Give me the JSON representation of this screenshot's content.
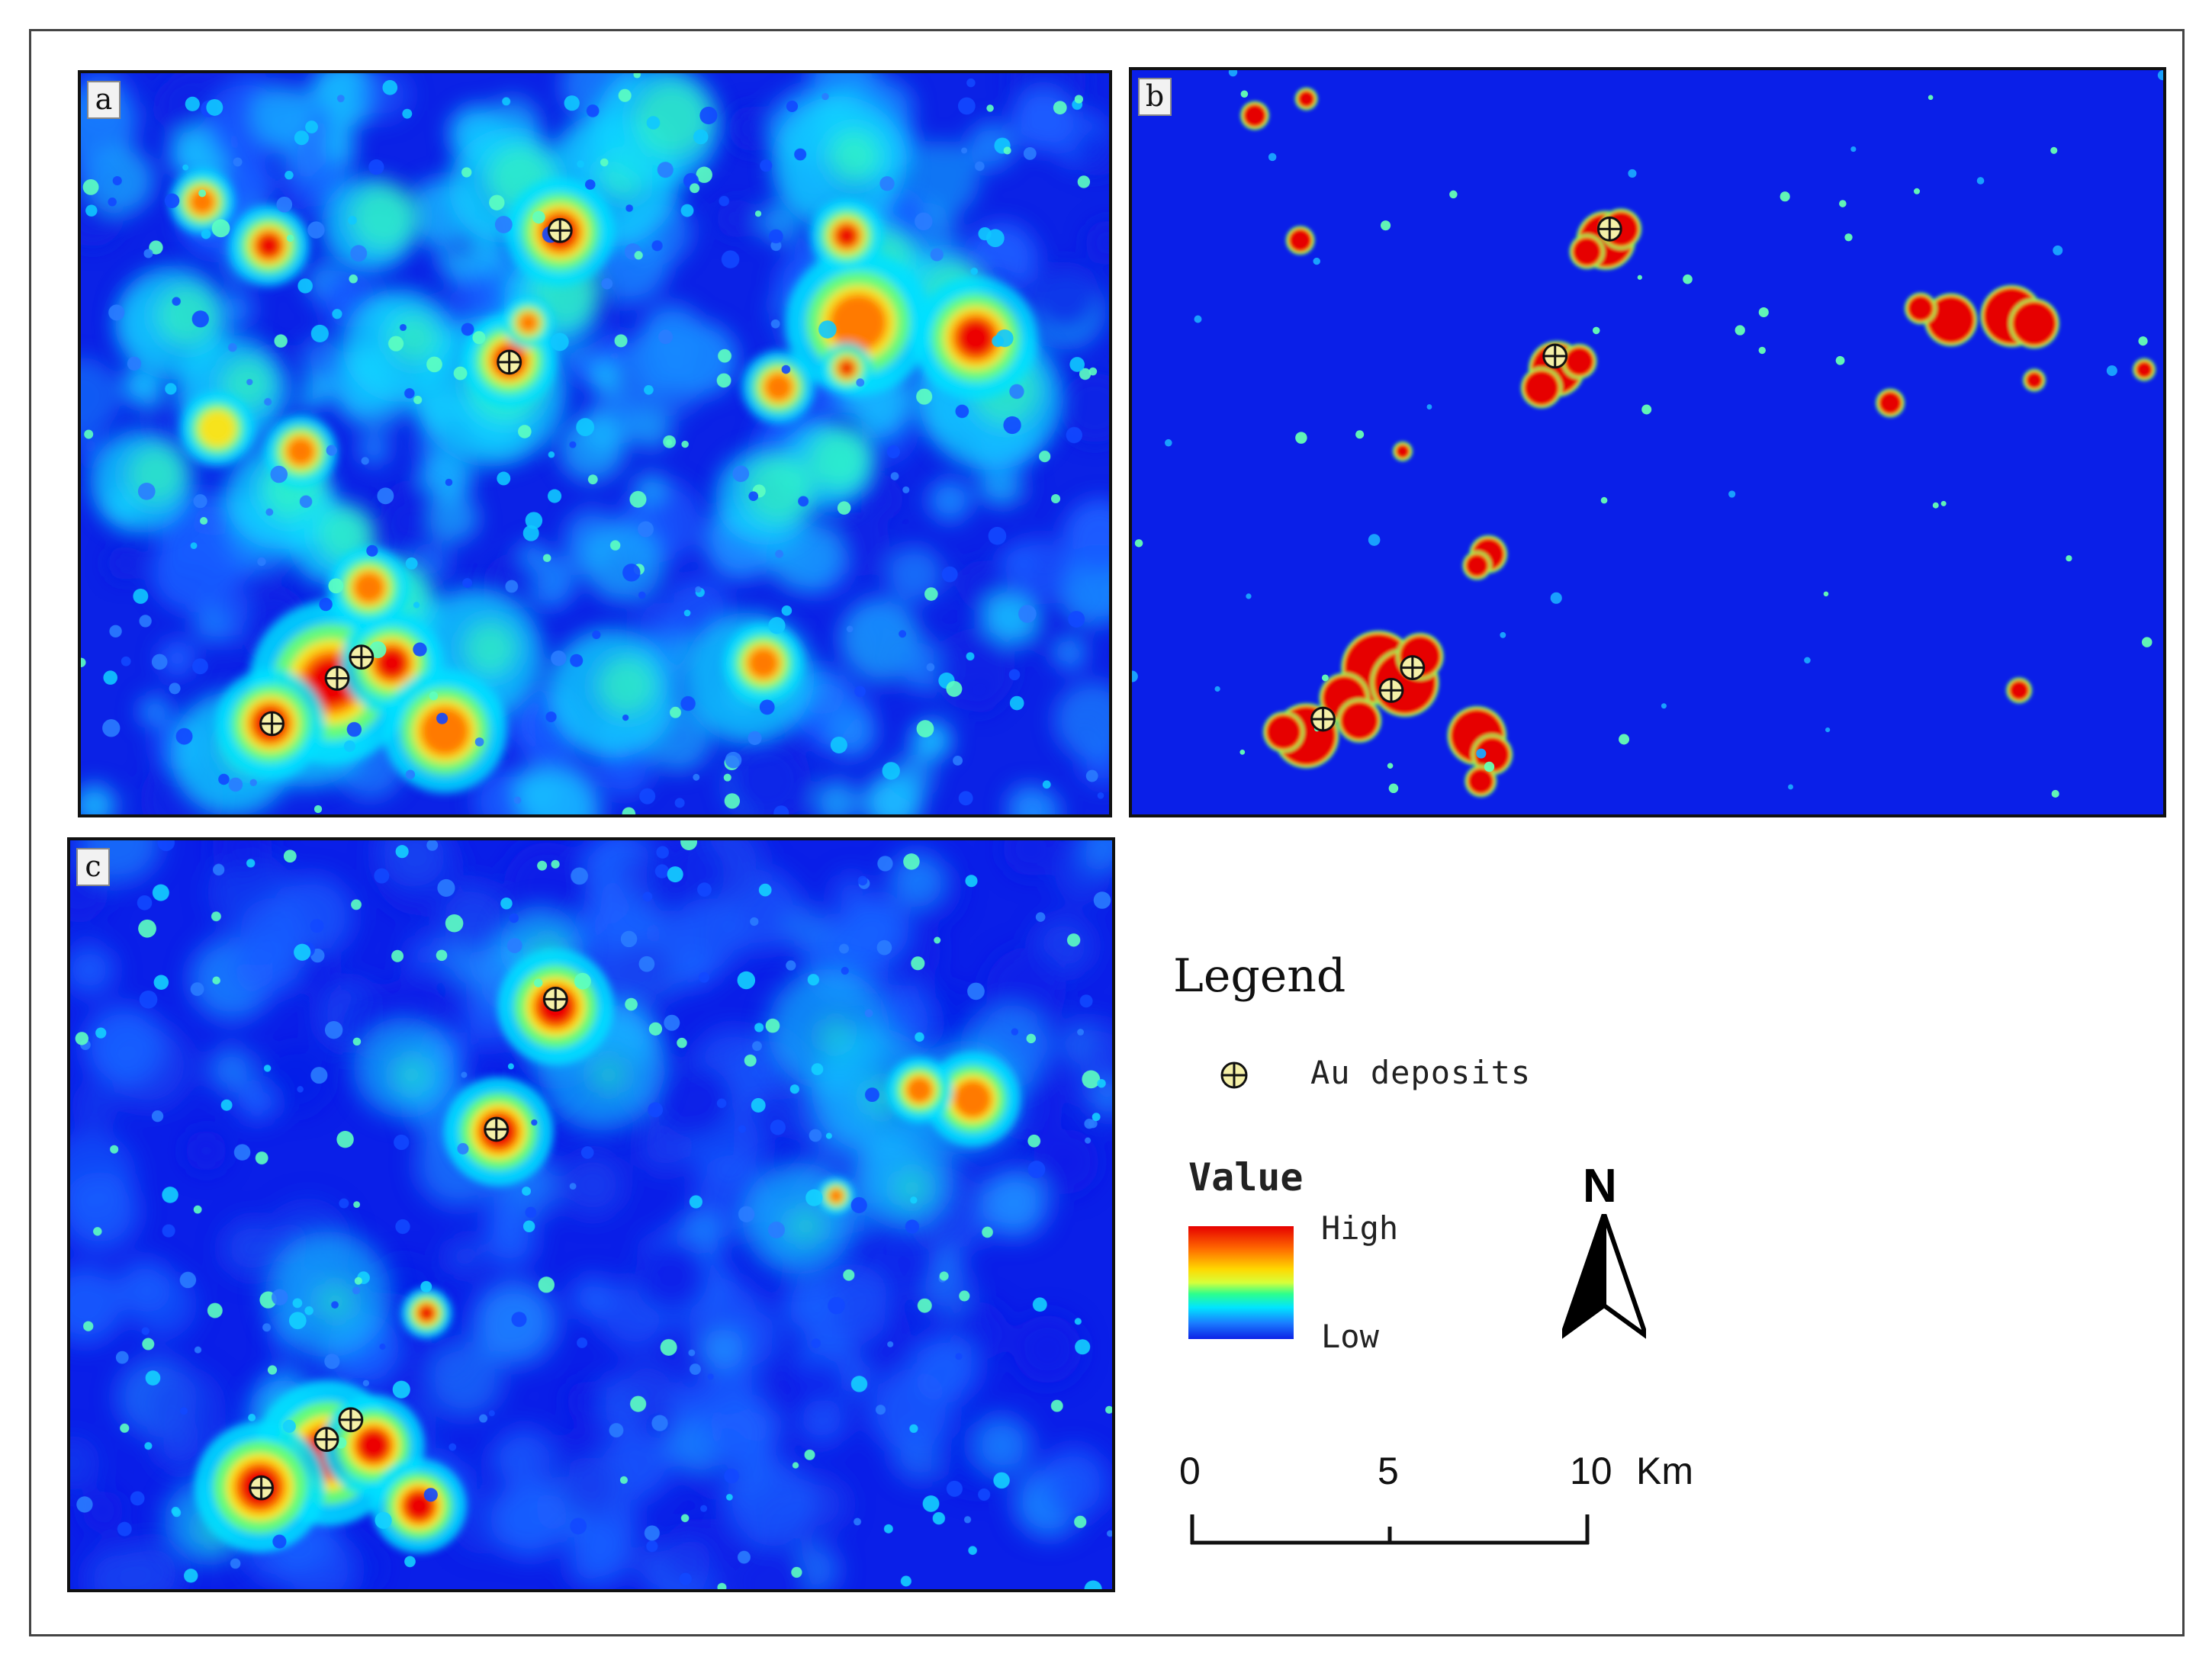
{
  "panels": [
    {
      "label": "a",
      "style": "broad-anomaly"
    },
    {
      "label": "b",
      "style": "binary-anomaly"
    },
    {
      "label": "c",
      "style": "subtle-anomaly"
    }
  ],
  "legend": {
    "title": "Legend",
    "deposit_label": "Au deposits",
    "deposit_icon": "circle-cross-icon",
    "value_title": "Value",
    "high_label": "High",
    "low_label": "Low",
    "north_label": "N",
    "scale": {
      "ticks": [
        "0",
        "5",
        "10"
      ],
      "unit": "Km"
    }
  },
  "colors": {
    "background_low": "#0a1fe8",
    "high": "#e60000",
    "deposit_fill": "#f5f0a8"
  }
}
